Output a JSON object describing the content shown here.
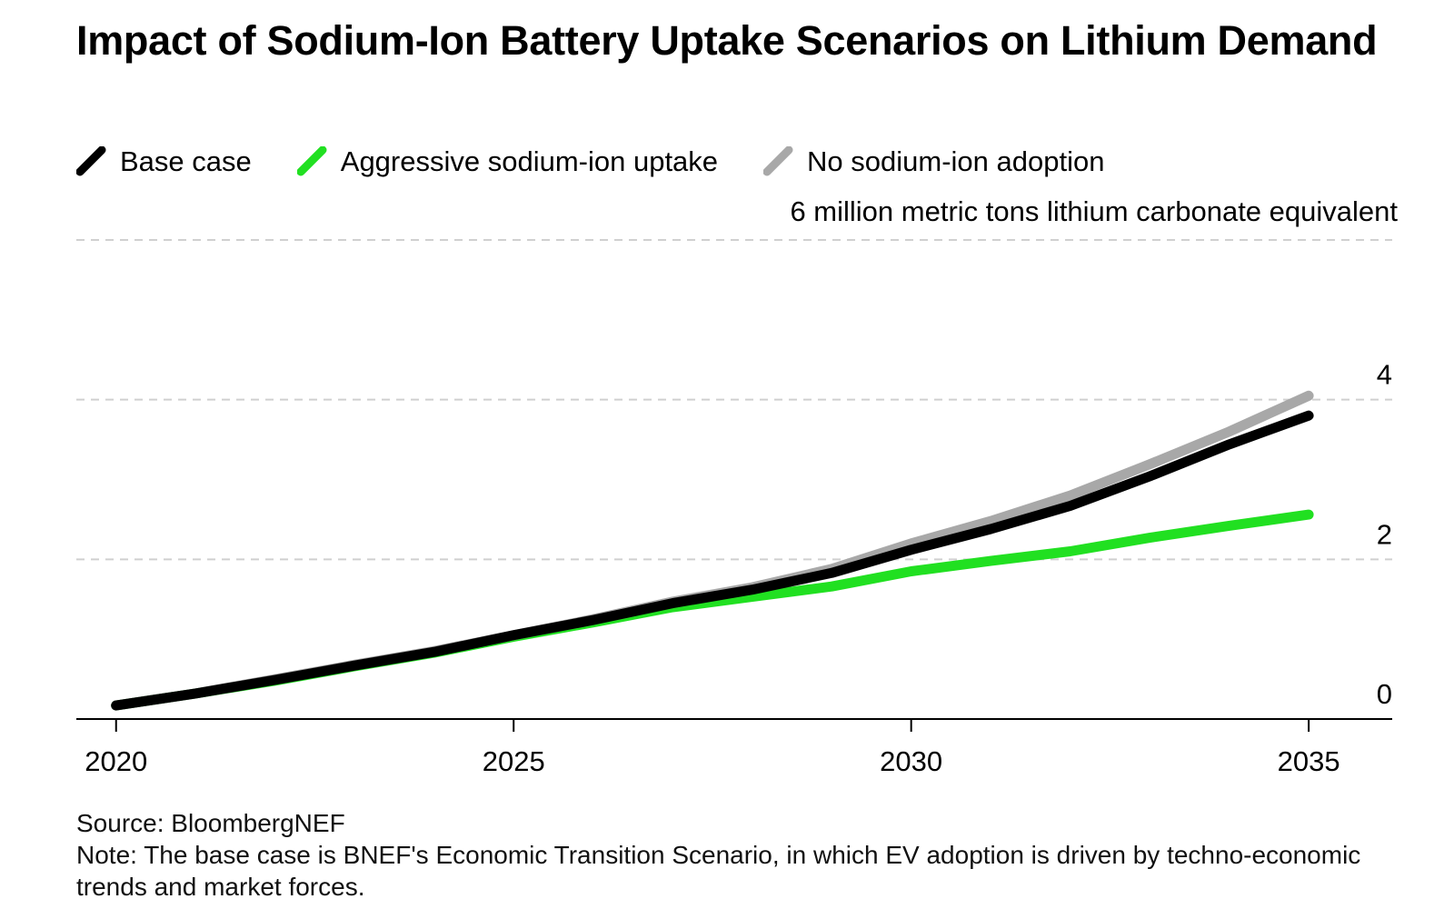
{
  "title": "Impact of Sodium-Ion Battery Uptake Scenarios on Lithium Demand",
  "unit_label": "6 million metric tons lithium carbonate equivalent",
  "legend": [
    {
      "label": "Base case",
      "color": "#000000"
    },
    {
      "label": "Aggressive sodium-ion uptake",
      "color": "#21e021"
    },
    {
      "label": "No sodium-ion adoption",
      "color": "#a8a8a8"
    }
  ],
  "source": "Source: BloombergNEF",
  "note": "Note: The base case is BNEF's Economic Transition Scenario, in which EV adoption is driven by techno-economic trends and market forces.",
  "chart_data": {
    "type": "line",
    "x": [
      2020,
      2021,
      2022,
      2023,
      2024,
      2025,
      2026,
      2027,
      2028,
      2029,
      2030,
      2031,
      2032,
      2033,
      2034,
      2035
    ],
    "series": [
      {
        "name": "Aggressive sodium-ion uptake",
        "color": "#21e021",
        "values": [
          0.17,
          0.32,
          0.48,
          0.66,
          0.83,
          1.03,
          1.21,
          1.4,
          1.53,
          1.66,
          1.85,
          1.98,
          2.1,
          2.27,
          2.42,
          2.56
        ]
      },
      {
        "name": "No sodium-ion adoption",
        "color": "#a8a8a8",
        "values": [
          0.17,
          0.32,
          0.5,
          0.68,
          0.85,
          1.05,
          1.25,
          1.47,
          1.65,
          1.88,
          2.2,
          2.48,
          2.8,
          3.19,
          3.6,
          4.05
        ]
      },
      {
        "name": "Base case",
        "color": "#000000",
        "values": [
          0.17,
          0.32,
          0.49,
          0.67,
          0.84,
          1.05,
          1.24,
          1.45,
          1.62,
          1.83,
          2.12,
          2.38,
          2.67,
          3.04,
          3.44,
          3.8
        ]
      }
    ],
    "xticks": [
      2020,
      2025,
      2030,
      2035
    ],
    "yticks": [
      0,
      2,
      4,
      6
    ],
    "ytick_labels": [
      "0",
      "2",
      "4",
      ""
    ],
    "xlim": [
      2019.5,
      2036.05
    ],
    "ylim": [
      0,
      6
    ],
    "grid": true
  }
}
